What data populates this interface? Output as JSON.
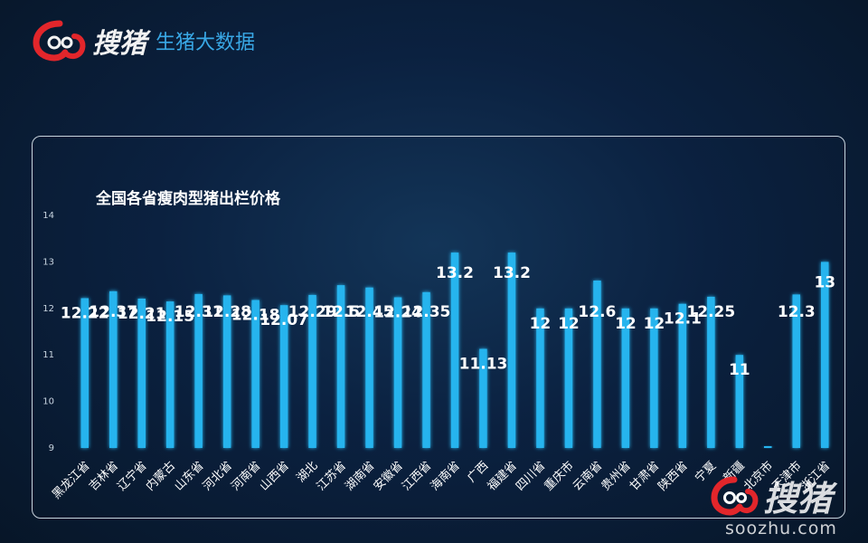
{
  "brand": {
    "logo_text": "搜猪",
    "tagline": "生猪大数据"
  },
  "watermark": {
    "logo_text": "搜猪",
    "url": "soozhu.com"
  },
  "colors": {
    "bar": "#27b4ee",
    "label": "#ffffff",
    "accent": "#39a8e6",
    "logo_red": "#e2262b"
  },
  "chart_data": {
    "type": "bar",
    "title": "全国各省瘦肉型猪出栏价格",
    "categories": [
      "黑龙江省",
      "吉林省",
      "辽宁省",
      "内蒙古",
      "山东省",
      "河北省",
      "河南省",
      "山西省",
      "湖北",
      "江苏省",
      "湖南省",
      "安徽省",
      "江西省",
      "海南省",
      "广西",
      "福建省",
      "四川省",
      "重庆市",
      "云南省",
      "贵州省",
      "甘肃省",
      "陕西省",
      "宁夏",
      "新疆",
      "北京市",
      "天津市",
      "浙江省"
    ],
    "values": [
      12.22,
      12.37,
      12.21,
      12.15,
      12.31,
      12.28,
      12.18,
      12.07,
      12.29,
      12.5,
      12.45,
      12.24,
      12.35,
      13.2,
      11.13,
      13.2,
      12,
      12,
      12.6,
      12,
      12,
      12.1,
      12.25,
      11,
      null,
      12.3,
      13
    ],
    "data_labels": [
      "12.22",
      "12.37",
      "12.21",
      "12.15",
      "12.31",
      "12.28",
      "12.18",
      "12.07",
      "12.29",
      "12.5",
      "12.45",
      "12.24",
      "12.35",
      "13.2",
      "11.13",
      "13.2",
      "12",
      "12",
      "12.6",
      "12",
      "12",
      "12.1",
      "12.25",
      "11",
      "",
      "12.3",
      "13"
    ],
    "yticks": [
      "9",
      "10",
      "11",
      "12",
      "13",
      "14"
    ],
    "ylim": [
      9,
      14
    ],
    "grid": false,
    "legend": "none"
  }
}
